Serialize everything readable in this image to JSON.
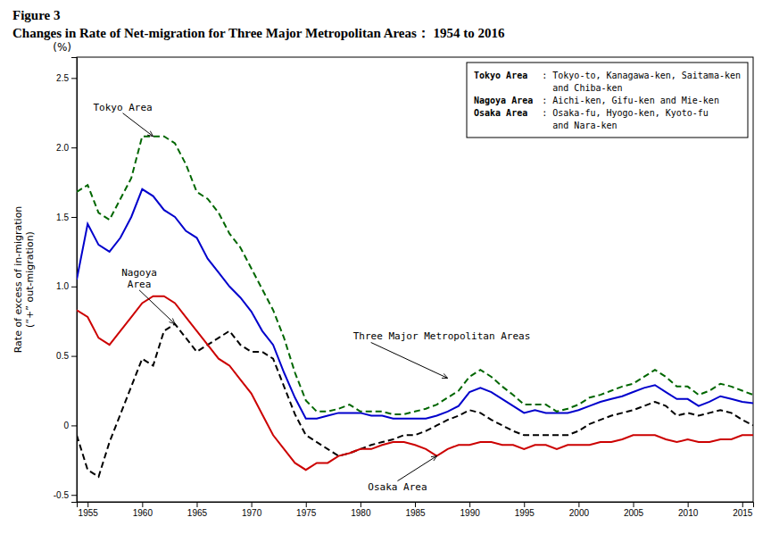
{
  "chart_data": {
    "type": "line",
    "title": "Figure 3",
    "subtitle": "Changes in Rate of Net‐migration for Three Major Metropolitan Areas： 1954 to 2016",
    "y_label": "Rate of excess of in-migration\n(“+” out-migration)",
    "y_unit": "(%)",
    "xlim": [
      1954,
      2016
    ],
    "ylim": [
      -0.55,
      2.65
    ],
    "xticks": [
      1955,
      1960,
      1965,
      1970,
      1975,
      1980,
      1985,
      1990,
      1995,
      2000,
      2005,
      2010,
      2015
    ],
    "yticks": [
      -0.5,
      0,
      0.5,
      {
        "value": 1.0,
        "label": "1.0"
      },
      1.5,
      {
        "value": 2.0,
        "label": "2.0"
      },
      2.5
    ],
    "grid": false,
    "x": [
      1954,
      1955,
      1956,
      1957,
      1958,
      1959,
      1960,
      1961,
      1962,
      1963,
      1964,
      1965,
      1966,
      1967,
      1968,
      1969,
      1970,
      1971,
      1972,
      1973,
      1974,
      1975,
      1976,
      1977,
      1978,
      1979,
      1980,
      1981,
      1982,
      1983,
      1984,
      1985,
      1986,
      1987,
      1988,
      1989,
      1990,
      1991,
      1992,
      1993,
      1994,
      1995,
      1996,
      1997,
      1998,
      1999,
      2000,
      2001,
      2002,
      2003,
      2004,
      2005,
      2006,
      2007,
      2008,
      2009,
      2010,
      2011,
      2012,
      2013,
      2014,
      2015,
      2016
    ],
    "series": [
      {
        "color": "#0000cc",
        "line_style": "solid",
        "values": [
          1.05,
          1.45,
          1.3,
          1.25,
          1.35,
          1.5,
          1.7,
          1.65,
          1.55,
          1.5,
          1.4,
          1.35,
          1.2,
          1.1,
          1.0,
          0.92,
          0.82,
          0.68,
          0.58,
          0.38,
          0.2,
          0.05,
          0.05,
          0.07,
          0.09,
          0.09,
          0.09,
          0.07,
          0.07,
          0.05,
          0.05,
          0.05,
          0.05,
          0.07,
          0.1,
          0.14,
          0.24,
          0.27,
          0.24,
          0.19,
          0.14,
          0.09,
          0.11,
          0.09,
          0.09,
          0.09,
          0.11,
          0.14,
          0.17,
          0.19,
          0.21,
          0.24,
          0.27,
          0.29,
          0.24,
          0.19,
          0.19,
          0.14,
          0.17,
          0.21,
          0.19,
          0.17,
          0.16
        ]
      },
      {
        "color": "#000000",
        "line_style": "dashed",
        "values": [
          -0.07,
          -0.32,
          -0.37,
          -0.12,
          0.08,
          0.28,
          0.48,
          0.43,
          0.68,
          0.73,
          0.63,
          0.53,
          0.58,
          0.63,
          0.68,
          0.58,
          0.53,
          0.53,
          0.48,
          0.28,
          0.08,
          -0.07,
          -0.12,
          -0.17,
          -0.22,
          -0.2,
          -0.17,
          -0.14,
          -0.12,
          -0.1,
          -0.07,
          -0.07,
          -0.04,
          0.0,
          0.04,
          0.07,
          0.11,
          0.09,
          0.04,
          0.0,
          -0.04,
          -0.07,
          -0.07,
          -0.07,
          -0.07,
          -0.07,
          -0.04,
          0.01,
          0.04,
          0.07,
          0.09,
          0.11,
          0.14,
          0.17,
          0.14,
          0.07,
          0.09,
          0.07,
          0.09,
          0.11,
          0.09,
          0.04,
          0.0
        ]
      },
      {
        "color": "#cc0000",
        "line_style": "solid",
        "values": [
          0.83,
          0.78,
          0.63,
          0.58,
          0.68,
          0.78,
          0.88,
          0.93,
          0.93,
          0.88,
          0.78,
          0.68,
          0.58,
          0.48,
          0.43,
          0.33,
          0.23,
          0.08,
          -0.07,
          -0.17,
          -0.27,
          -0.32,
          -0.27,
          -0.27,
          -0.22,
          -0.2,
          -0.17,
          -0.17,
          -0.14,
          -0.12,
          -0.12,
          -0.14,
          -0.17,
          -0.22,
          -0.17,
          -0.14,
          -0.14,
          -0.12,
          -0.12,
          -0.14,
          -0.14,
          -0.17,
          -0.14,
          -0.14,
          -0.17,
          -0.14,
          -0.14,
          -0.14,
          -0.12,
          -0.12,
          -0.1,
          -0.07,
          -0.07,
          -0.07,
          -0.1,
          -0.12,
          -0.1,
          -0.12,
          -0.12,
          -0.1,
          -0.1,
          -0.07,
          -0.07
        ]
      },
      {
        "color": "#006600",
        "line_style": "dashed",
        "values": [
          1.68,
          1.73,
          1.53,
          1.48,
          1.63,
          1.78,
          2.08,
          2.08,
          2.08,
          2.03,
          1.88,
          1.68,
          1.63,
          1.53,
          1.38,
          1.28,
          1.13,
          0.98,
          0.83,
          0.63,
          0.38,
          0.18,
          0.1,
          0.1,
          0.12,
          0.15,
          0.1,
          0.1,
          0.1,
          0.08,
          0.08,
          0.1,
          0.12,
          0.15,
          0.2,
          0.25,
          0.35,
          0.4,
          0.35,
          0.28,
          0.22,
          0.15,
          0.15,
          0.15,
          0.1,
          0.12,
          0.15,
          0.2,
          0.22,
          0.25,
          0.28,
          0.3,
          0.35,
          0.4,
          0.35,
          0.28,
          0.28,
          0.22,
          0.25,
          0.3,
          0.28,
          0.25,
          0.22
        ]
      }
    ],
    "annotations": [
      {
        "text": "Tokyo Area",
        "x": 1961,
        "y": 2.08
      },
      {
        "text": "Nagoya\nArea",
        "x": 1963,
        "y": 0.73
      },
      {
        "text": "Osaka Area",
        "x": 1987,
        "y": -0.22
      },
      {
        "text": "Three Major Metropolitan Areas",
        "x": 1988,
        "y": 0.34
      }
    ],
    "text_box": [
      {
        "heading": "Tokyo Area",
        "lines": [
          ": Tokyo-to, Kanagawa-ken, Saitama-ken",
          "  and Chiba-ken"
        ]
      },
      {
        "heading": "Nagoya Area",
        "lines": [
          ": Aichi-ken, Gifu-ken and Mie-ken"
        ]
      },
      {
        "heading": "Osaka Area",
        "lines": [
          ": Osaka-fu, Hyogo-ken, Kyoto-fu",
          "  and Nara-ken"
        ]
      }
    ]
  }
}
